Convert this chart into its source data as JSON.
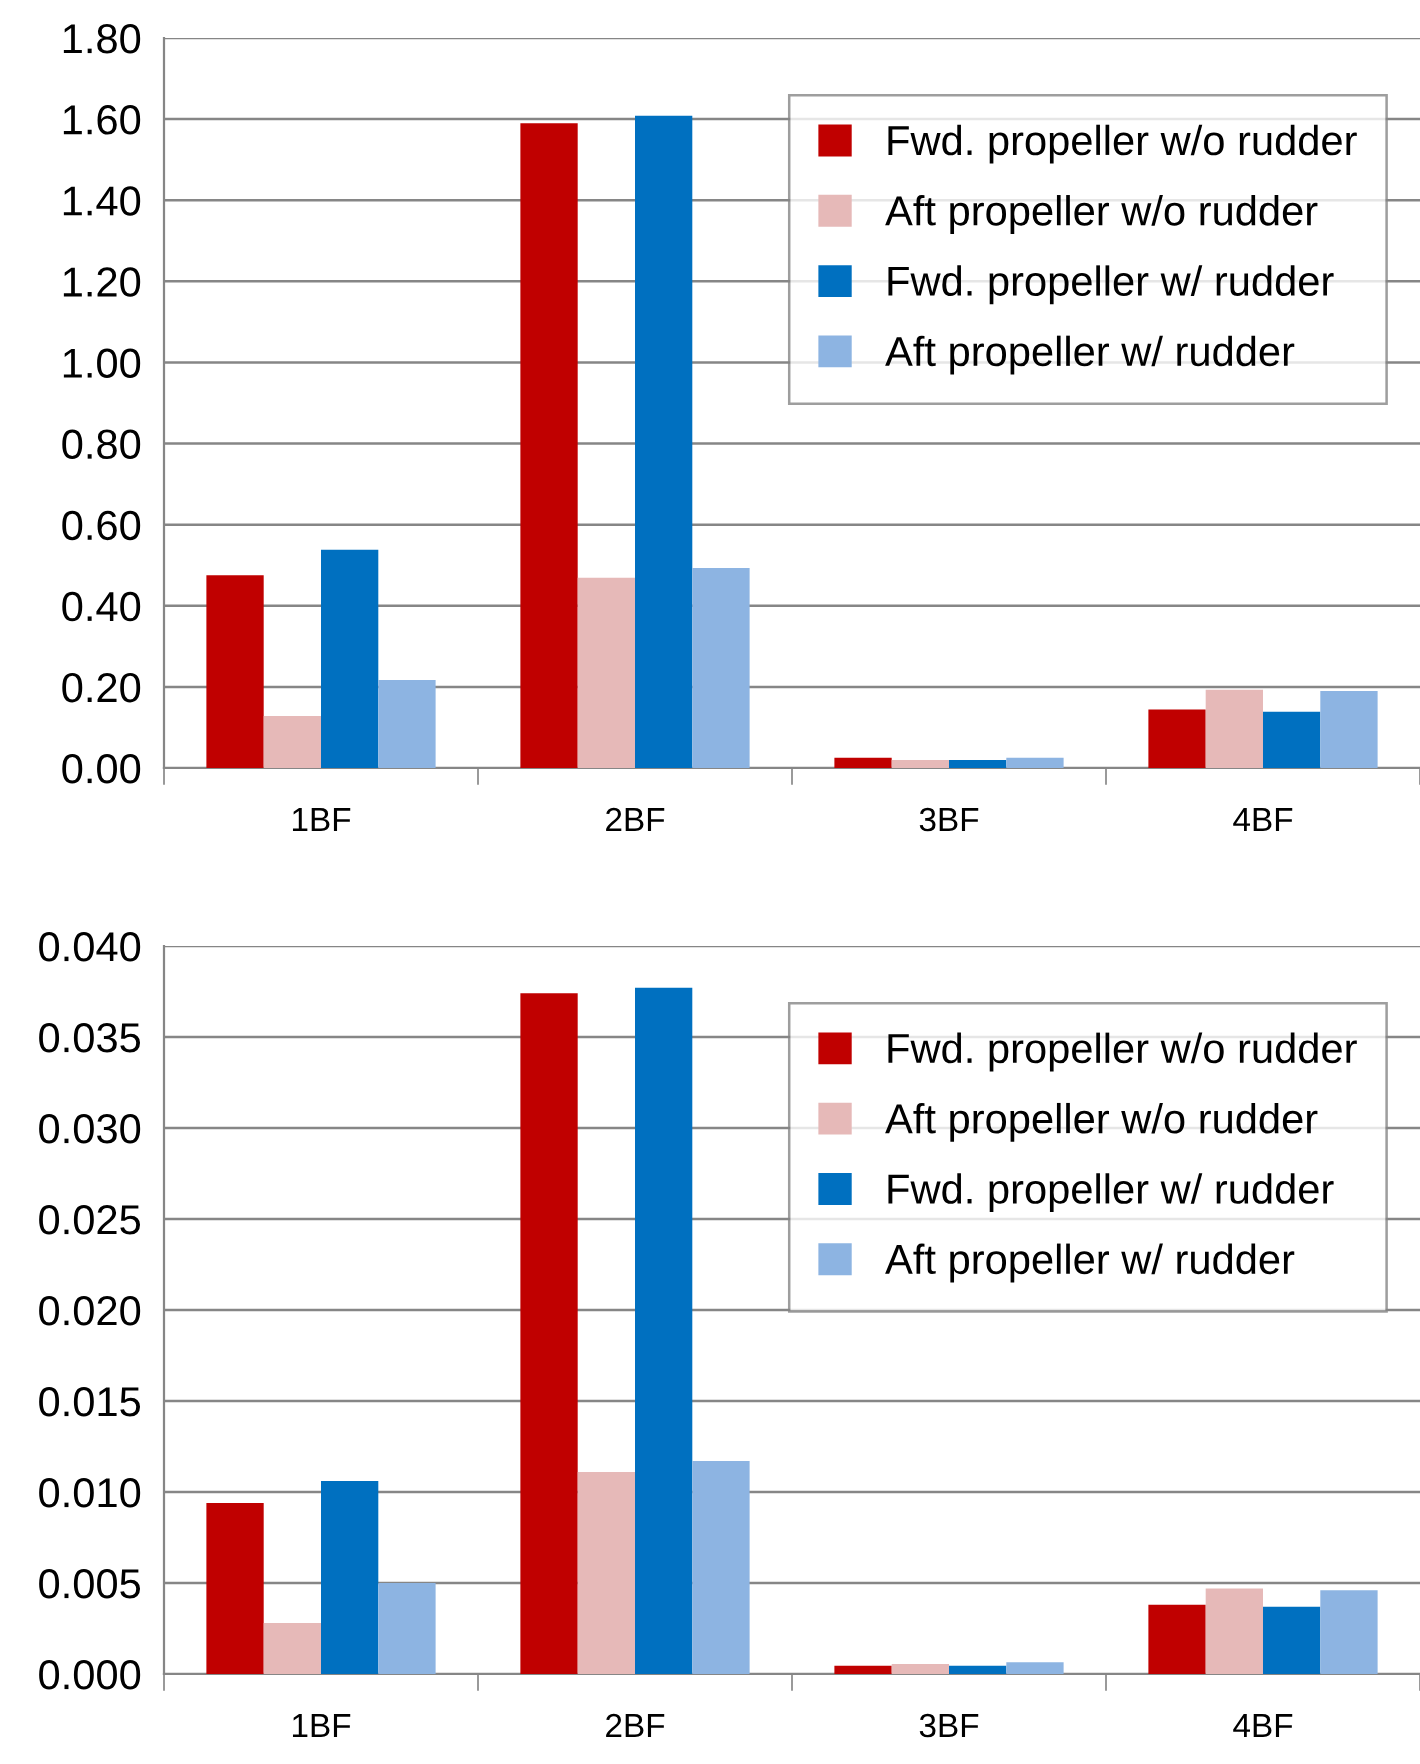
{
  "chart_data": [
    {
      "type": "bar",
      "categories": [
        "1BF",
        "2BF",
        "3BF",
        "4BF"
      ],
      "series": [
        {
          "name": "Fwd. propeller w/o rudder",
          "color": "#c00000",
          "values": [
            0.475,
            1.59,
            0.025,
            0.144
          ]
        },
        {
          "name": "Aft propeller w/o rudder",
          "color": "#e6b9b8",
          "values": [
            0.128,
            0.469,
            0.02,
            0.193
          ]
        },
        {
          "name": "Fwd. propeller w/ rudder",
          "color": "#0070c0",
          "values": [
            0.538,
            1.608,
            0.02,
            0.139
          ]
        },
        {
          "name": "Aft propeller w/ rudder",
          "color": "#8db4e2",
          "values": [
            0.217,
            0.493,
            0.025,
            0.19
          ]
        }
      ],
      "ylim": [
        0,
        1.8
      ],
      "yticks": [
        {
          "value": 0,
          "label": "0.00"
        },
        {
          "value": 0.2,
          "label": "0.20"
        },
        {
          "value": 0.4,
          "label": "0.40"
        },
        {
          "value": 0.6,
          "label": "0.60"
        },
        {
          "value": 0.8,
          "label": "0.80"
        },
        {
          "value": 1.0,
          "label": "1.00"
        },
        {
          "value": 1.2,
          "label": "1.20"
        },
        {
          "value": 1.4,
          "label": "1.40"
        },
        {
          "value": 1.6,
          "label": "1.60"
        },
        {
          "value": 1.8,
          "label": "1.80"
        }
      ],
      "grid": "y",
      "legend": "top right"
    },
    {
      "type": "bar",
      "categories": [
        "1BF",
        "2BF",
        "3BF",
        "4BF"
      ],
      "series": [
        {
          "name": "Fwd. propeller w/o rudder",
          "color": "#c00000",
          "values": [
            0.0094,
            0.0374,
            0.00045,
            0.0038
          ]
        },
        {
          "name": "Aft propeller w/o rudder",
          "color": "#e6b9b8",
          "values": [
            0.0028,
            0.0111,
            0.00055,
            0.0047
          ]
        },
        {
          "name": "Fwd. propeller w/ rudder",
          "color": "#0070c0",
          "values": [
            0.0106,
            0.0377,
            0.00045,
            0.0037
          ]
        },
        {
          "name": "Aft propeller w/ rudder",
          "color": "#8db4e2",
          "values": [
            0.005,
            0.0117,
            0.00065,
            0.0046
          ]
        }
      ],
      "ylim": [
        0,
        0.04
      ],
      "yticks": [
        {
          "value": 0,
          "label": "0.000"
        },
        {
          "value": 0.005,
          "label": "0.005"
        },
        {
          "value": 0.01,
          "label": "0.010"
        },
        {
          "value": 0.015,
          "label": "0.015"
        },
        {
          "value": 0.02,
          "label": "0.020"
        },
        {
          "value": 0.025,
          "label": "0.025"
        },
        {
          "value": 0.03,
          "label": "0.030"
        },
        {
          "value": 0.035,
          "label": "0.035"
        },
        {
          "value": 0.04,
          "label": "0.040"
        }
      ],
      "grid": "y",
      "legend": "top right"
    }
  ]
}
